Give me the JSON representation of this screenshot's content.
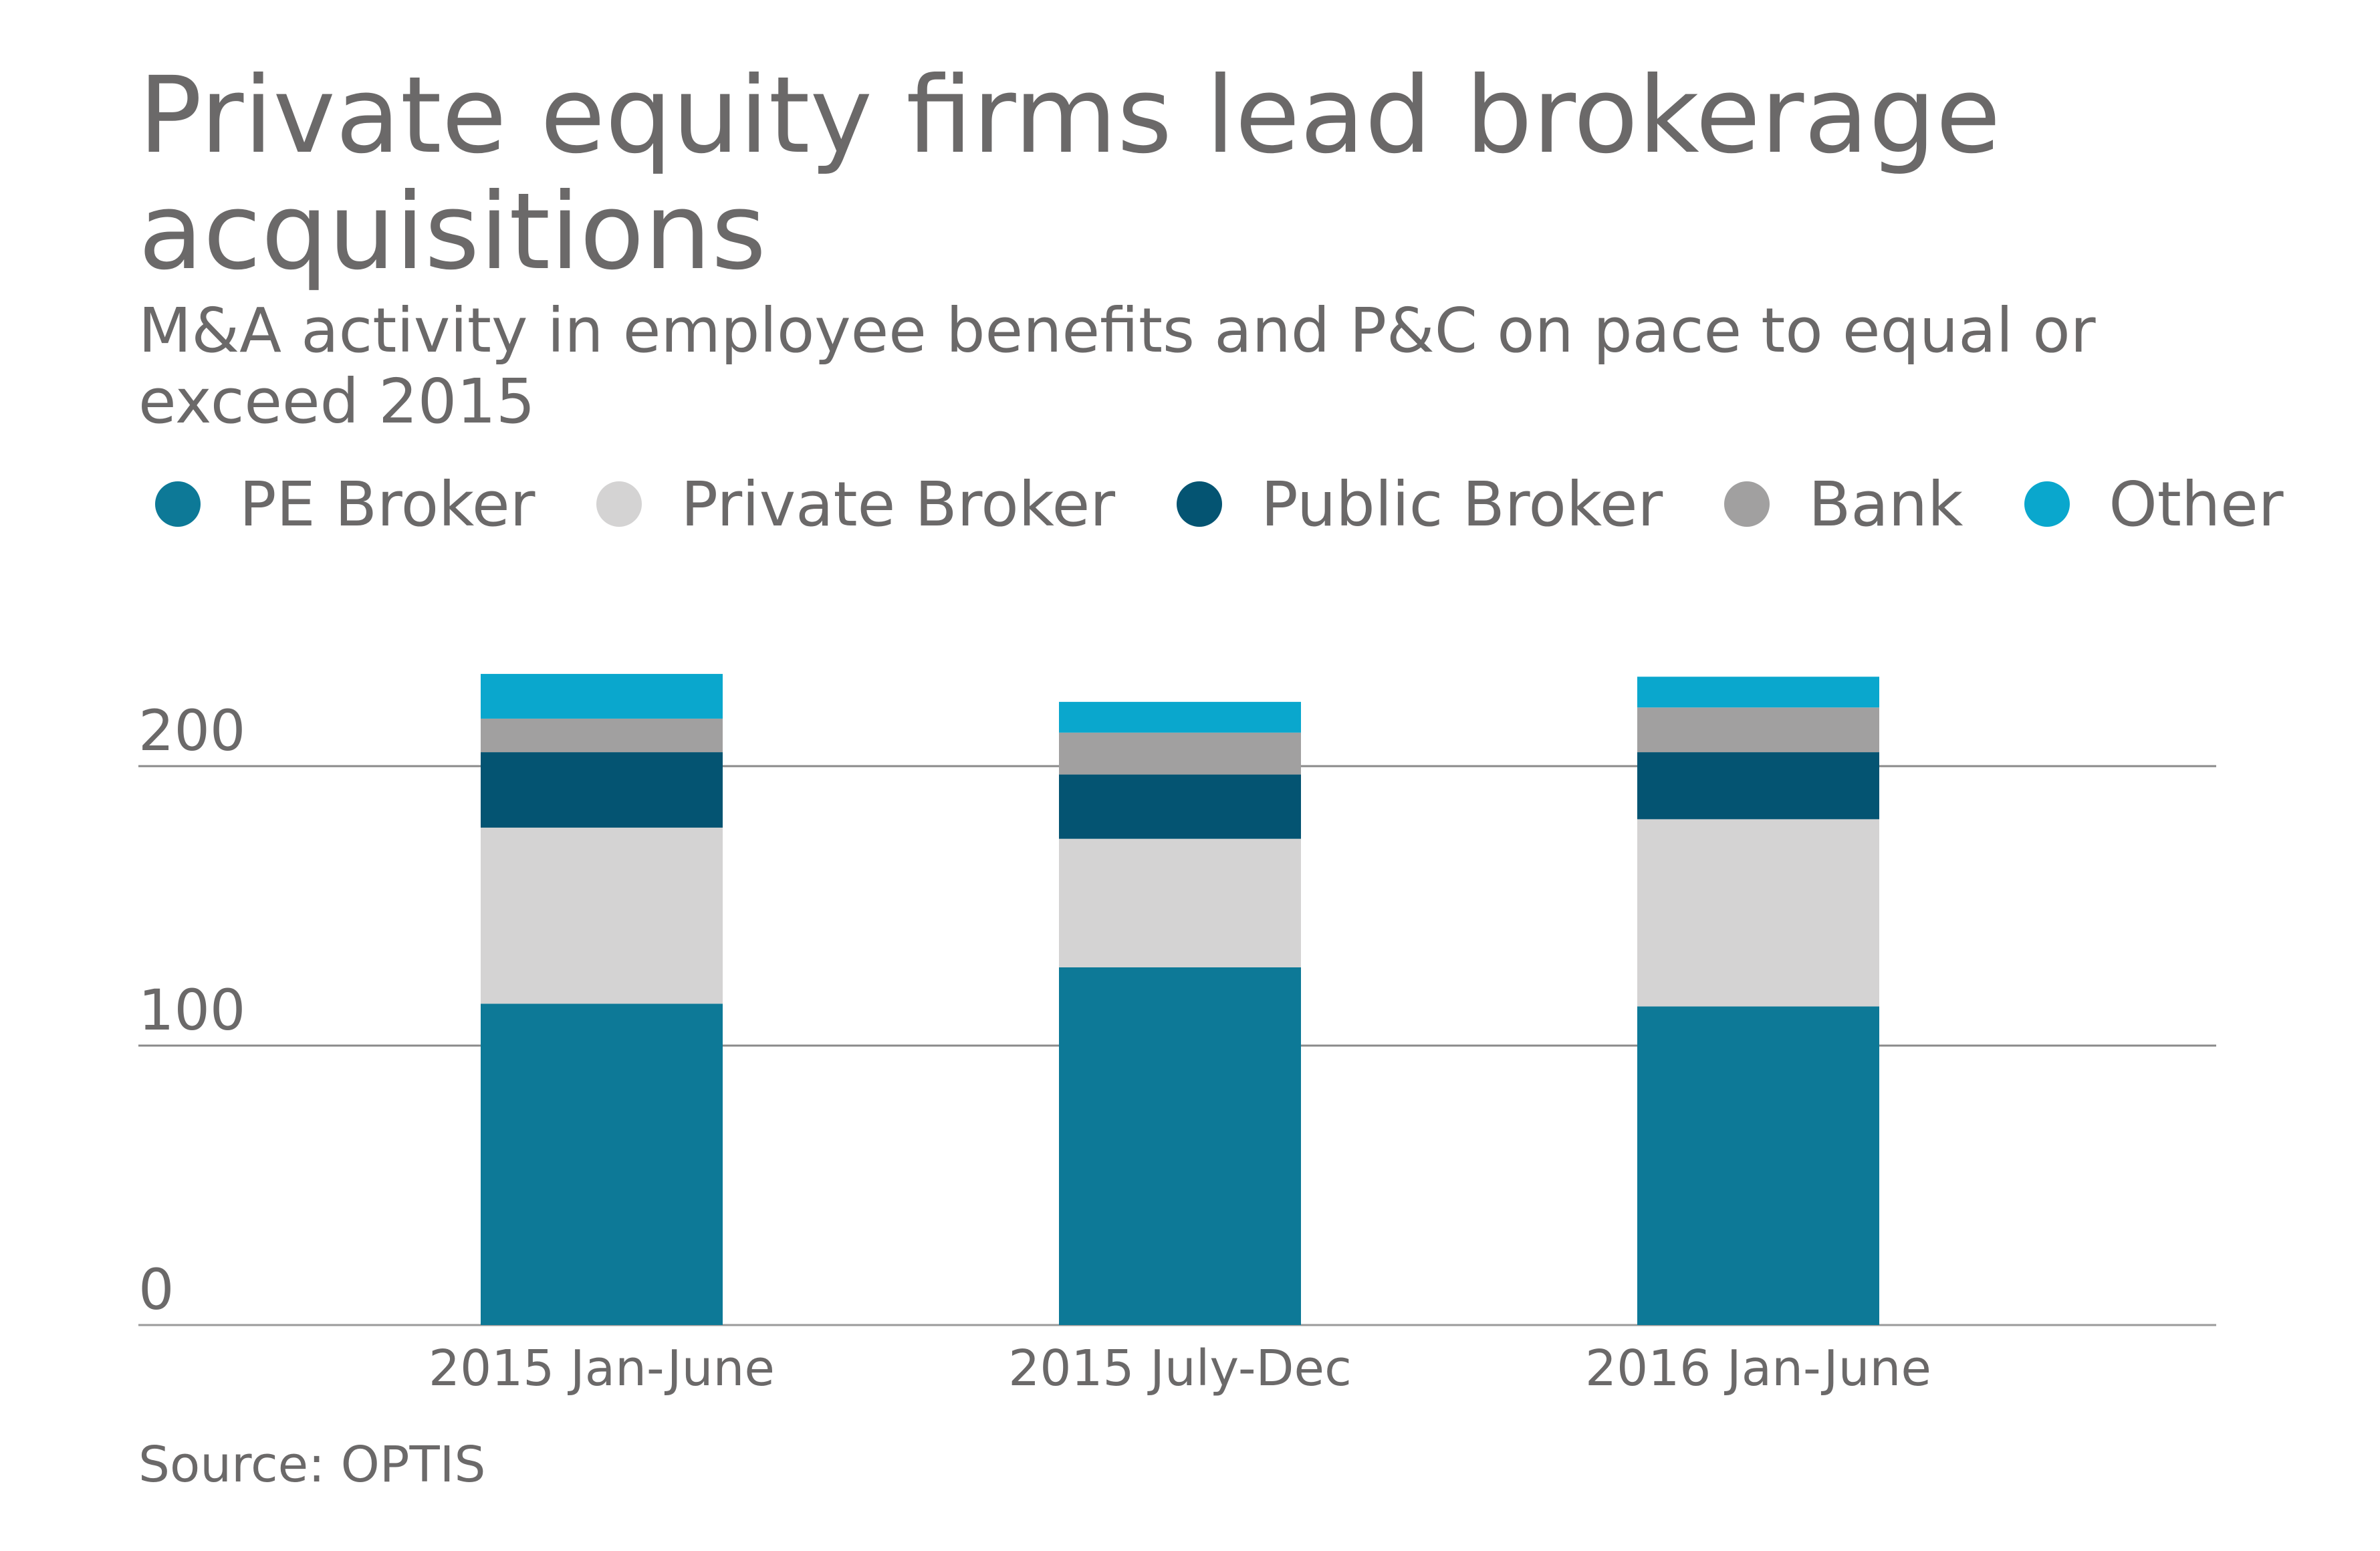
{
  "title": "Private equity firms lead brokerage acquisitions",
  "subtitle": "M&A activity in employee benefits and P&C on pace to equal or exceed 2015",
  "source": "Source: OPTIS",
  "legend": [
    {
      "label": "PE Broker",
      "color": "#0d7997"
    },
    {
      "label": "Private Broker",
      "color": "#d4d3d3"
    },
    {
      "label": "Public Broker",
      "color": "#045472"
    },
    {
      "label": "Bank",
      "color": "#a1a0a0"
    },
    {
      "label": "Other",
      "color": "#0aa7cd"
    }
  ],
  "chart_data": {
    "type": "bar",
    "stacked": true,
    "categories": [
      "2015 Jan-June",
      "2015 July-Dec",
      "2016 Jan-June"
    ],
    "series": [
      {
        "name": "PE Broker",
        "color": "#0d7997",
        "values": [
          115,
          128,
          114
        ]
      },
      {
        "name": "Private Broker",
        "color": "#d4d3d3",
        "values": [
          63,
          46,
          67
        ]
      },
      {
        "name": "Public Broker",
        "color": "#045472",
        "values": [
          27,
          23,
          24
        ]
      },
      {
        "name": "Bank",
        "color": "#a1a0a0",
        "values": [
          12,
          15,
          16
        ]
      },
      {
        "name": "Other",
        "color": "#0aa7cd",
        "values": [
          16,
          11,
          11
        ]
      }
    ],
    "yticks": [
      0,
      100,
      200
    ],
    "ylim": [
      0,
      240
    ],
    "grid": true,
    "legend_position": "top"
  }
}
